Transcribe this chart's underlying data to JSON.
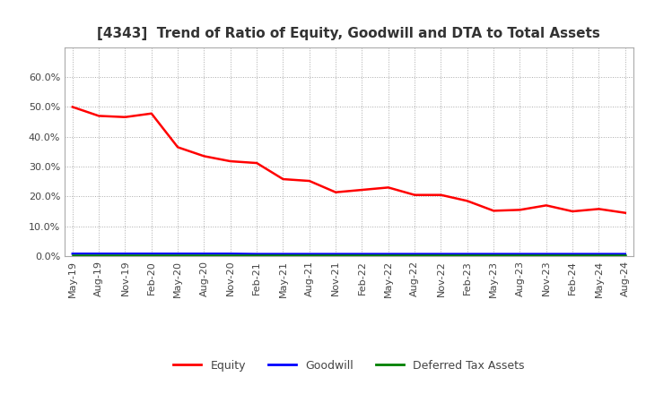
{
  "title": "[4343]  Trend of Ratio of Equity, Goodwill and DTA to Total Assets",
  "x_labels": [
    "May-19",
    "Aug-19",
    "Nov-19",
    "Feb-20",
    "May-20",
    "Aug-20",
    "Nov-20",
    "Feb-21",
    "May-21",
    "Aug-21",
    "Nov-21",
    "Feb-22",
    "May-22",
    "Aug-22",
    "Nov-22",
    "Feb-23",
    "May-23",
    "Aug-23",
    "Nov-23",
    "Feb-24",
    "May-24",
    "Aug-24"
  ],
  "equity": [
    0.5,
    0.47,
    0.466,
    0.478,
    0.365,
    0.335,
    0.318,
    0.312,
    0.258,
    0.252,
    0.214,
    0.222,
    0.23,
    0.205,
    0.205,
    0.185,
    0.152,
    0.155,
    0.17,
    0.15,
    0.158,
    0.145
  ],
  "goodwill": [
    0.008,
    0.008,
    0.008,
    0.008,
    0.008,
    0.008,
    0.008,
    0.007,
    0.007,
    0.007,
    0.007,
    0.007,
    0.007,
    0.007,
    0.007,
    0.007,
    0.007,
    0.007,
    0.007,
    0.007,
    0.007,
    0.007
  ],
  "dta": [
    0.002,
    0.002,
    0.002,
    0.002,
    0.002,
    0.002,
    0.002,
    0.002,
    0.002,
    0.002,
    0.002,
    0.002,
    0.002,
    0.002,
    0.002,
    0.002,
    0.002,
    0.002,
    0.002,
    0.002,
    0.002,
    0.002
  ],
  "equity_color": "#FF0000",
  "goodwill_color": "#0000FF",
  "dta_color": "#008000",
  "ylim": [
    0.0,
    0.7
  ],
  "yticks": [
    0.0,
    0.1,
    0.2,
    0.3,
    0.4,
    0.5,
    0.6
  ],
  "background_color": "#FFFFFF",
  "plot_bg_color": "#FFFFFF",
  "grid_color": "#AAAAAA",
  "title_fontsize": 11,
  "tick_fontsize": 8,
  "legend_labels": [
    "Equity",
    "Goodwill",
    "Deferred Tax Assets"
  ]
}
